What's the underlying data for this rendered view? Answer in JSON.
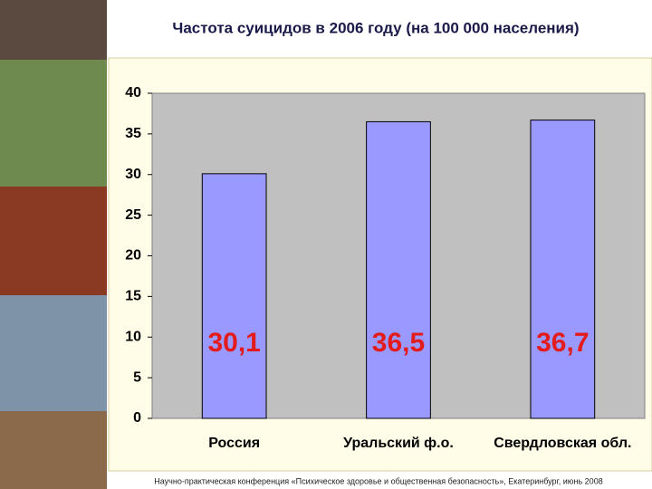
{
  "chart_data": {
    "type": "bar",
    "title": "Частота суицидов в 2006 году (на 100 000 населения)",
    "categories": [
      "Россия",
      "Уральский ф.о.",
      "Свердловская обл."
    ],
    "values": [
      30.1,
      36.5,
      36.7
    ],
    "value_labels": [
      "30,1",
      "36,5",
      "36,7"
    ],
    "color": "#9999ff",
    "ylim": [
      0,
      40
    ],
    "yticks": [
      0,
      5,
      10,
      15,
      20,
      25,
      30,
      35,
      40
    ],
    "grid": false
  },
  "footer": "Научно-практическая конференция «Психическое здоровье и общественная безопасность», Екатеринбург, июнь 2008"
}
